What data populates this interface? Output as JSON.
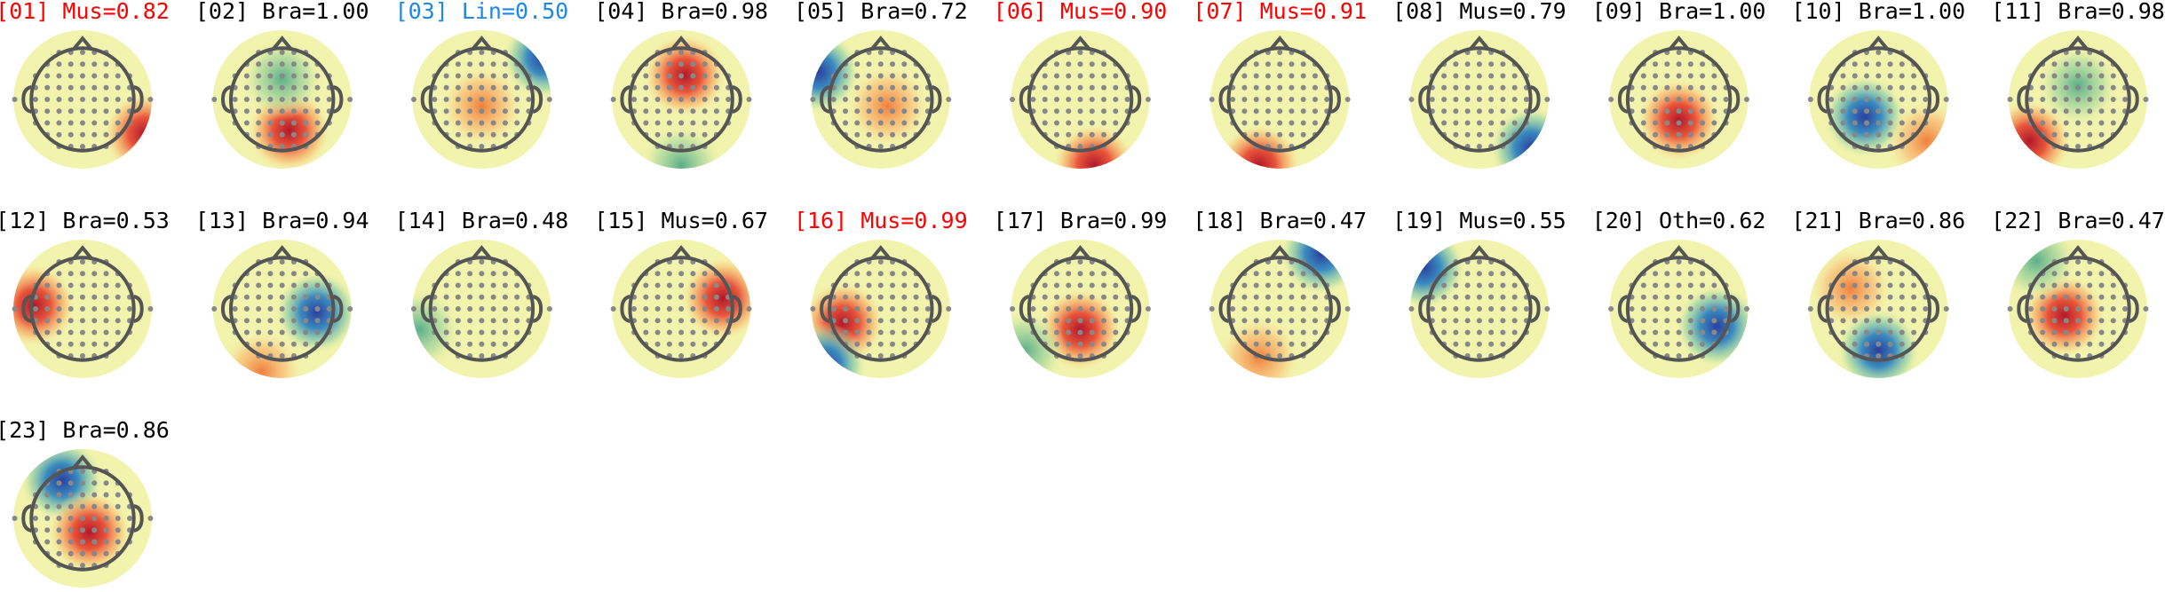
{
  "components": [
    {
      "label": "[01] Mus=0.82",
      "color": "#ff0000"
    },
    {
      "label": "[02] Bra=1.00",
      "color": "#000000"
    },
    {
      "label": "[03] Lin=0.50",
      "color": "#1e88e5"
    },
    {
      "label": "[04] Bra=0.98",
      "color": "#000000"
    },
    {
      "label": "[05] Bra=0.72",
      "color": "#000000"
    },
    {
      "label": "[06] Mus=0.90",
      "color": "#ff0000"
    },
    {
      "label": "[07] Mus=0.91",
      "color": "#ff0000"
    },
    {
      "label": "[08] Mus=0.79",
      "color": "#000000"
    },
    {
      "label": "[09] Bra=1.00",
      "color": "#000000"
    },
    {
      "label": "[10] Bra=1.00",
      "color": "#000000"
    },
    {
      "label": "[11] Bra=0.98",
      "color": "#000000"
    },
    {
      "label": "[12] Bra=0.53",
      "color": "#000000"
    },
    {
      "label": "[13] Bra=0.94",
      "color": "#000000"
    },
    {
      "label": "[14] Bra=0.48",
      "color": "#000000"
    },
    {
      "label": "[15] Mus=0.67",
      "color": "#000000"
    },
    {
      "label": "[16] Mus=0.99",
      "color": "#ff0000"
    },
    {
      "label": "[17] Bra=0.99",
      "color": "#000000"
    },
    {
      "label": "[18] Bra=0.47",
      "color": "#000000"
    },
    {
      "label": "[19] Mus=0.55",
      "color": "#000000"
    },
    {
      "label": "[20] Oth=0.62",
      "color": "#000000"
    },
    {
      "label": "[21] Bra=0.86",
      "color": "#000000"
    },
    {
      "label": "[22] Bra=0.47",
      "color": "#000000"
    },
    {
      "label": "[23] Bra=0.86",
      "color": "#000000"
    }
  ]
}
